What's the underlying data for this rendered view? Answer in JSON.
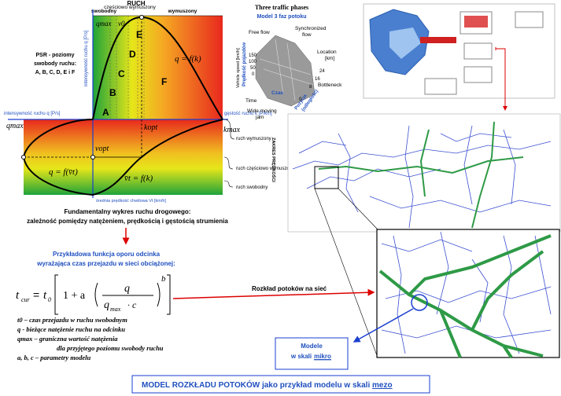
{
  "fundamental_diagram": {
    "regimes_header": "RUCH",
    "regimes": [
      "swobodny",
      "częściowo wymuszony",
      "wymuszony"
    ],
    "psr_note": [
      "PSR - poziomy",
      "swobody ruchu:",
      "A, B, C, D, E i F"
    ],
    "los_letters": [
      "A",
      "B",
      "C",
      "D",
      "E",
      "F"
    ],
    "q_axis_vertical": "intensywność ruchu q [P/s]",
    "q_axis_left": "intensywność ruchu q [P/s]",
    "k_axis": "gęstość ruchu k [P/km]",
    "v_axis": "średnia prędkość chwilowa Vt [km/h]",
    "symbols": {
      "qmax_top": "qmax",
      "v0": "v0",
      "kopt": "kopt",
      "vopt": "vopt",
      "kmax": "kmax",
      "qmax_left": "qmax"
    },
    "curves": [
      "q = f(k)",
      "q = f(v̄t)",
      "v̄t = f(k)"
    ],
    "v_regimes": [
      "ruch wymuszony",
      "ruch częściowo wymuszony",
      "ruch swobodny"
    ],
    "speed_range": "ZAKRES PRĘDKOŚCI",
    "caption": [
      "Fundamentalny wykres ruchu drogowego:",
      "zależność pomiędzy natężeniem, prędkością i gęstością strumienia"
    ]
  },
  "three_phases": {
    "title": "Three traffic phases",
    "subtitle": "Model 3 faz potoku",
    "free_flow": "Free flow",
    "synchronized": [
      "Synchronized",
      "flow"
    ],
    "jam": [
      "Wide moving",
      "jam"
    ],
    "time": "Time",
    "czas": "Czas",
    "location": [
      "Location",
      "[km]"
    ],
    "pozycja": [
      "Pozycja",
      "(odległość)"
    ],
    "speed": "Vehicle speed [km/h]",
    "predkosc": "Prędkość pojazdów",
    "bottleneck": "Bottleneck",
    "speed_ticks": [
      "150",
      "100",
      "50",
      "0"
    ],
    "location_ticks": [
      "0",
      "8",
      "16",
      "24"
    ]
  },
  "resistance_function": {
    "heading": [
      "Przykładowa funkcja oporu odcinka",
      "wyrażająca czas przejazdu w sieci obciążonej:"
    ],
    "formula": {
      "lhs": "t",
      "lhs_sub": "cur",
      "eq": "=",
      "t0": "t",
      "t0_sub": "0",
      "one_plus_a": "1 + a",
      "num": "q",
      "den": "q",
      "den_sub": "max",
      "den_rest": "· c",
      "exp": "b"
    },
    "legend": [
      "t0 – czas przejazdu w ruchu swobodnym",
      "q  - bieżące natężenie ruchu na odcinku",
      "qmax – graniczna wartość natężenia",
      "dla przyjętego poziomu swobody ruchu",
      "a, b, c – parametry modelu"
    ]
  },
  "network": {
    "flow_label": "Rozkład potoków  na sieć",
    "micro": [
      "Modele",
      "w skali",
      "mikro"
    ]
  },
  "footer": {
    "text": "MODEL ROZKŁADU POTOKÓW jako przykład modelu w skali ",
    "underlined": "mezo"
  }
}
